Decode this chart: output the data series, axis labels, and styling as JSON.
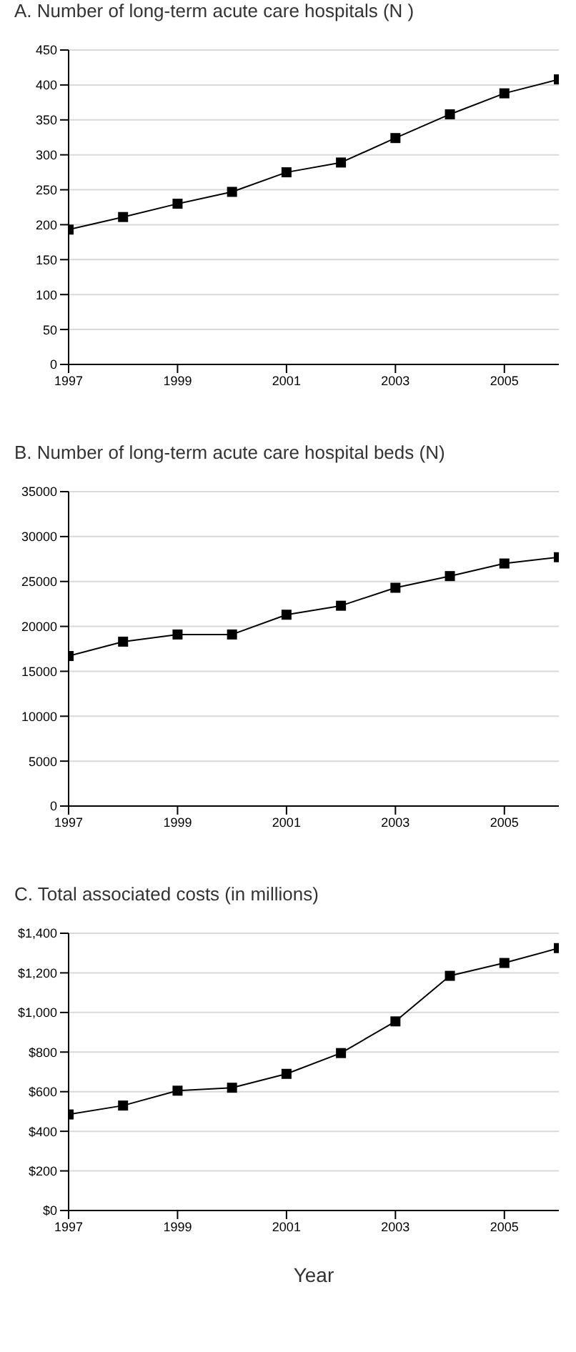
{
  "chart_data": [
    {
      "type": "line",
      "title": "A. Number of long-term acute care hospitals (N )",
      "x": [
        1997,
        1998,
        1999,
        2000,
        2001,
        2002,
        2003,
        2004,
        2005,
        2006
      ],
      "values": [
        193,
        211,
        230,
        247,
        275,
        289,
        324,
        358,
        388,
        408
      ],
      "color": "#000000",
      "xlim": [
        1997,
        2006
      ],
      "xticks": [
        1997,
        1999,
        2001,
        2003,
        2005
      ],
      "ylim": [
        0,
        450
      ],
      "yticks": [
        0,
        50,
        100,
        150,
        200,
        250,
        300,
        350,
        400,
        450
      ],
      "grid": "y",
      "marker": "square",
      "line_style": "solid",
      "legend": false
    },
    {
      "type": "line",
      "title": "B. Number of long-term acute care hospital beds (N)",
      "x": [
        1997,
        1998,
        1999,
        2000,
        2001,
        2002,
        2003,
        2004,
        2005,
        2006
      ],
      "values": [
        16700,
        18300,
        19100,
        19100,
        21300,
        22300,
        24300,
        25600,
        27000,
        27700
      ],
      "color": "#000000",
      "xlim": [
        1997,
        2006
      ],
      "xticks": [
        1997,
        1999,
        2001,
        2003,
        2005
      ],
      "ylim": [
        0,
        35000
      ],
      "yticks": [
        0,
        5000,
        10000,
        15000,
        20000,
        25000,
        30000,
        35000
      ],
      "grid": "y",
      "marker": "square",
      "line_style": "solid",
      "legend": false
    },
    {
      "type": "line",
      "title": "C. Total associated costs (in millions)",
      "xlabel": "Year",
      "x": [
        1997,
        1998,
        1999,
        2000,
        2001,
        2002,
        2003,
        2004,
        2005,
        2006
      ],
      "values": [
        485,
        530,
        605,
        620,
        690,
        795,
        955,
        1185,
        1250,
        1325
      ],
      "color": "#000000",
      "xlim": [
        1997,
        2006
      ],
      "xticks": [
        1997,
        1999,
        2001,
        2003,
        2005
      ],
      "ylim": [
        0,
        1400
      ],
      "yticks": [
        {
          "value": 0,
          "label": "$0"
        },
        {
          "value": 200,
          "label": "$200"
        },
        {
          "value": 400,
          "label": "$400"
        },
        {
          "value": 600,
          "label": "$600"
        },
        {
          "value": 800,
          "label": "$800"
        },
        {
          "value": 1000,
          "label": "$1,000"
        },
        {
          "value": 1200,
          "label": "$1,200"
        },
        {
          "value": 1400,
          "label": "$1,400"
        }
      ],
      "grid": "y",
      "marker": "square",
      "line_style": "solid",
      "legend": false
    }
  ]
}
